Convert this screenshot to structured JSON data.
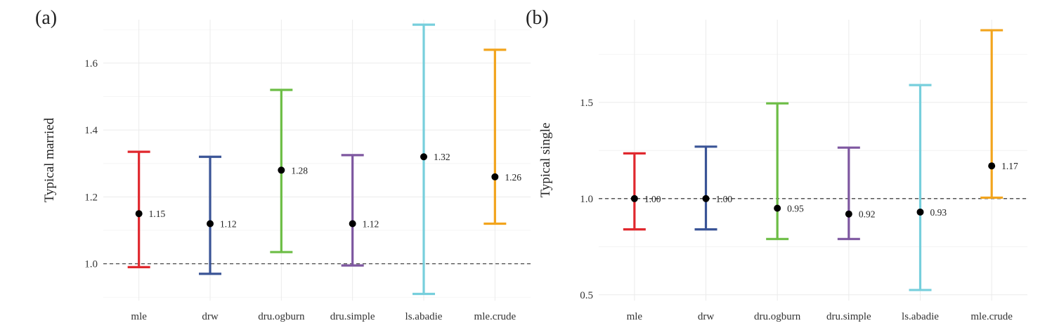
{
  "panels": [
    {
      "tag": "(a)"
    },
    {
      "tag": "(b)"
    }
  ],
  "chart_data": [
    {
      "type": "errorbar",
      "categories": [
        "mle",
        "drw",
        "dru.ogburn",
        "dru.simple",
        "ls.abadie",
        "mle.crude"
      ],
      "estimates": [
        1.15,
        1.12,
        1.28,
        1.12,
        1.32,
        1.26
      ],
      "estimate_labels": [
        "1.15",
        "1.12",
        "1.28",
        "1.12",
        "1.32",
        "1.26"
      ],
      "lower": [
        0.99,
        0.97,
        1.035,
        0.995,
        0.91,
        1.12
      ],
      "upper": [
        1.335,
        1.32,
        1.52,
        1.325,
        1.715,
        1.64
      ],
      "colors": [
        "#e0282e",
        "#3a5496",
        "#6cbd45",
        "#7e57a0",
        "#77cfdc",
        "#f2a41d"
      ],
      "ylabel": "Typical married",
      "xlabel": "",
      "yticks": [
        1.0,
        1.2,
        1.4,
        1.6
      ],
      "ytick_labels": [
        "1.0",
        "1.2",
        "1.4",
        "1.6"
      ],
      "ylim": [
        0.89,
        1.73
      ],
      "reference_line": 1.0,
      "grid": true
    },
    {
      "type": "errorbar",
      "categories": [
        "mle",
        "drw",
        "dru.ogburn",
        "dru.simple",
        "ls.abadie",
        "mle.crude"
      ],
      "estimates": [
        1.0,
        1.0,
        0.95,
        0.92,
        0.93,
        1.17
      ],
      "estimate_labels": [
        "1.00",
        "1.00",
        "0.95",
        "0.92",
        "0.93",
        "1.17"
      ],
      "lower": [
        0.84,
        0.84,
        0.79,
        0.79,
        0.525,
        1.005
      ],
      "upper": [
        1.235,
        1.27,
        1.495,
        1.265,
        1.59,
        1.875
      ],
      "colors": [
        "#e0282e",
        "#3a5496",
        "#6cbd45",
        "#7e57a0",
        "#77cfdc",
        "#f2a41d"
      ],
      "ylabel": "Typical single",
      "xlabel": "",
      "yticks": [
        0.5,
        1.0,
        1.5
      ],
      "ytick_labels": [
        "0.5",
        "1.0",
        "1.5"
      ],
      "ylim": [
        0.47,
        1.93
      ],
      "reference_line": 1.0,
      "grid": true
    }
  ]
}
